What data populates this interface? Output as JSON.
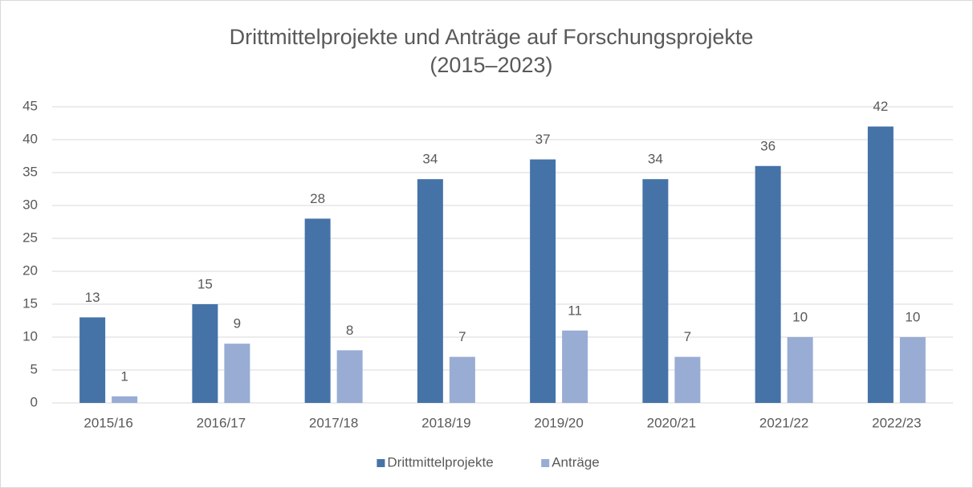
{
  "chart_data": {
    "type": "bar",
    "title": [
      "Drittmittelprojekte und Anträge auf Forschungsprojekte",
      "(2015–2023)"
    ],
    "categories": [
      "2015/16",
      "2016/17",
      "2017/18",
      "2018/19",
      "2019/20",
      "2020/21",
      "2021/22",
      "2022/23"
    ],
    "series": [
      {
        "name": "Drittmittelprojekte",
        "color": "#4573a8",
        "values": [
          13,
          15,
          28,
          34,
          37,
          34,
          36,
          42
        ]
      },
      {
        "name": "Anträge",
        "color": "#98acd4",
        "values": [
          1,
          9,
          8,
          7,
          11,
          7,
          10,
          10
        ]
      }
    ],
    "ylim": [
      0,
      45
    ],
    "yticks": [
      0,
      5,
      10,
      15,
      20,
      25,
      30,
      35,
      40,
      45
    ],
    "grid": true,
    "legend": "bottom"
  }
}
